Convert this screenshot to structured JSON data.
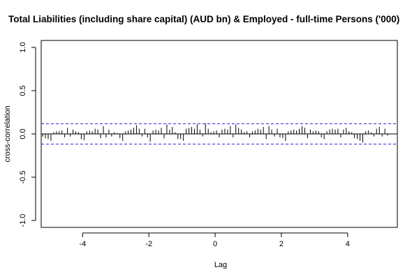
{
  "chart_data": {
    "type": "bar",
    "title": "Total Liabilities (including share capital) (AUD bn)  & Employed - full-time Persons ('000)",
    "xlabel": "Lag",
    "ylabel": "cross-correlation",
    "xlim": [
      -5.25,
      5.5
    ],
    "ylim": [
      -1.08,
      1.08
    ],
    "x_ticks": [
      -4,
      -2,
      0,
      2,
      4
    ],
    "x_tick_labels": [
      "-4",
      "-2",
      "0",
      "2",
      "4"
    ],
    "y_ticks": [
      -1.0,
      -0.5,
      0.0,
      0.5,
      1.0
    ],
    "y_tick_labels": [
      "-1.0",
      "-0.5",
      "0.0",
      "0.5",
      "1.0"
    ],
    "confidence_bounds": [
      0.118,
      -0.118
    ],
    "colors": {
      "bars": "#000000",
      "confidence": "#2222dd",
      "zero_line": "#000000"
    },
    "lag_step": 0.0833,
    "values": [
      -0.03,
      -0.05,
      -0.06,
      -0.08,
      0.02,
      0.03,
      0.03,
      0.04,
      -0.04,
      0.07,
      -0.03,
      0.05,
      0.03,
      0.02,
      -0.06,
      -0.07,
      0.03,
      0.04,
      0.03,
      0.06,
      0.05,
      -0.05,
      0.09,
      -0.04,
      0.05,
      -0.03,
      0.02,
      0.01,
      -0.05,
      -0.08,
      0.03,
      0.04,
      0.05,
      0.07,
      0.1,
      0.06,
      -0.03,
      0.06,
      -0.04,
      -0.09,
      0.04,
      0.05,
      0.04,
      0.07,
      -0.05,
      0.11,
      0.05,
      0.08,
      0.02,
      -0.06,
      -0.06,
      -0.08,
      0.06,
      0.07,
      0.08,
      0.06,
      0.11,
      0.05,
      -0.03,
      0.12,
      0.06,
      0.02,
      0.03,
      0.04,
      -0.04,
      0.05,
      0.06,
      0.05,
      0.09,
      -0.04,
      0.11,
      0.07,
      0.05,
      0.02,
      0.03,
      -0.04,
      0.03,
      0.04,
      0.06,
      0.05,
      0.08,
      -0.06,
      0.09,
      0.05,
      -0.03,
      0.06,
      -0.04,
      -0.05,
      -0.08,
      0.03,
      0.04,
      0.05,
      0.04,
      0.06,
      0.09,
      0.07,
      -0.05,
      0.05,
      0.03,
      0.04,
      0.03,
      -0.04,
      -0.06,
      0.03,
      0.05,
      0.06,
      0.05,
      0.06,
      -0.04,
      0.05,
      0.07,
      0.03,
      0.02,
      -0.05,
      -0.06,
      -0.08,
      -0.1,
      0.03,
      0.04,
      0.02,
      -0.03,
      0.06,
      0.08,
      -0.03,
      0.06,
      -0.02
    ]
  }
}
